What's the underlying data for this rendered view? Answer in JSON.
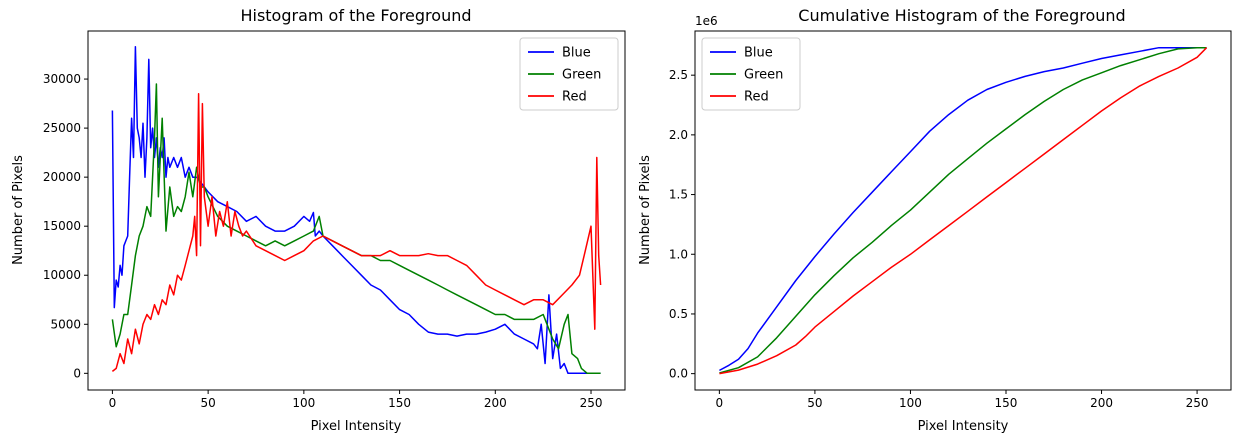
{
  "chart_data": [
    {
      "type": "line",
      "title": "Histogram of the Foreground",
      "xlabel": "Pixel Intensity",
      "ylabel": "Number of Pixels",
      "xlim": [
        -12.75,
        267.75
      ],
      "ylim": [
        -1700,
        34900
      ],
      "xticks": [
        0,
        50,
        100,
        150,
        200,
        250
      ],
      "yticks": [
        0,
        5000,
        10000,
        15000,
        20000,
        25000,
        30000
      ],
      "ytick_labels": [
        "0",
        "5000",
        "10000",
        "15000",
        "20000",
        "25000",
        "30000"
      ],
      "legend": "top-right",
      "series": [
        {
          "name": "Blue",
          "color": "#0000ff",
          "x": [
            0,
            1,
            2,
            3,
            4,
            5,
            6,
            7,
            8,
            9,
            10,
            11,
            12,
            13,
            14,
            15,
            16,
            17,
            18,
            19,
            20,
            21,
            22,
            23,
            24,
            25,
            26,
            27,
            28,
            29,
            30,
            32,
            34,
            36,
            38,
            40,
            42,
            44,
            46,
            48,
            50,
            55,
            60,
            65,
            70,
            75,
            80,
            85,
            90,
            95,
            100,
            103,
            105,
            106,
            108,
            110,
            115,
            120,
            125,
            130,
            135,
            140,
            145,
            150,
            155,
            160,
            165,
            170,
            175,
            180,
            185,
            190,
            195,
            200,
            205,
            210,
            215,
            220,
            222,
            224,
            226,
            228,
            230,
            232,
            234,
            236,
            238,
            240,
            245,
            250,
            255
          ],
          "y": [
            26800,
            6700,
            9500,
            8800,
            11000,
            10000,
            13000,
            13500,
            14000,
            20000,
            26000,
            22000,
            33300,
            25000,
            24000,
            22000,
            25500,
            20000,
            24000,
            32000,
            23000,
            25000,
            22000,
            24000,
            21000,
            23000,
            22000,
            24000,
            20000,
            22000,
            21000,
            22000,
            21000,
            22000,
            20000,
            21000,
            20000,
            20000,
            19500,
            19000,
            18500,
            17500,
            17000,
            16500,
            15500,
            16000,
            15000,
            14500,
            14500,
            15000,
            16000,
            15500,
            16400,
            14000,
            14500,
            14000,
            13000,
            12000,
            11000,
            10000,
            9000,
            8500,
            7500,
            6500,
            6000,
            5000,
            4200,
            4000,
            4000,
            3800,
            4000,
            4000,
            4200,
            4500,
            5000,
            4000,
            3500,
            3000,
            2500,
            5000,
            1000,
            8000,
            1500,
            4000,
            500,
            1000,
            0,
            0,
            0,
            0,
            0
          ]
        },
        {
          "name": "Green",
          "color": "#008000",
          "x": [
            0,
            2,
            4,
            6,
            8,
            10,
            12,
            14,
            16,
            18,
            20,
            22,
            23,
            24,
            25,
            26,
            28,
            30,
            32,
            34,
            36,
            38,
            40,
            42,
            44,
            46,
            48,
            50,
            55,
            60,
            65,
            70,
            75,
            80,
            85,
            90,
            95,
            100,
            105,
            108,
            110,
            115,
            120,
            125,
            130,
            135,
            140,
            145,
            150,
            155,
            160,
            165,
            170,
            175,
            180,
            185,
            190,
            195,
            200,
            205,
            210,
            215,
            220,
            225,
            228,
            230,
            233,
            236,
            238,
            240,
            243,
            245,
            248,
            250,
            255
          ],
          "y": [
            5500,
            2700,
            4000,
            6000,
            6000,
            9000,
            12000,
            14000,
            15000,
            17000,
            16000,
            24000,
            29500,
            18000,
            22000,
            26000,
            14500,
            19000,
            16000,
            17000,
            16500,
            18000,
            20500,
            18000,
            21000,
            19000,
            19000,
            18000,
            16000,
            15000,
            14500,
            14000,
            13500,
            13000,
            13500,
            13000,
            13500,
            14000,
            14500,
            16000,
            14000,
            13500,
            13000,
            12500,
            12000,
            12000,
            11500,
            11500,
            11000,
            10500,
            10000,
            9500,
            9000,
            8500,
            8000,
            7500,
            7000,
            6500,
            6000,
            6000,
            5500,
            5500,
            5500,
            6000,
            4500,
            3500,
            2500,
            5000,
            6000,
            2000,
            1500,
            500,
            0,
            0,
            0
          ]
        },
        {
          "name": "Red",
          "color": "#ff0000",
          "x": [
            0,
            2,
            4,
            6,
            8,
            10,
            12,
            14,
            16,
            18,
            20,
            22,
            24,
            26,
            28,
            30,
            32,
            34,
            36,
            38,
            40,
            42,
            43,
            44,
            45,
            46,
            47,
            48,
            50,
            52,
            54,
            56,
            58,
            60,
            62,
            64,
            66,
            68,
            70,
            75,
            80,
            85,
            90,
            95,
            100,
            105,
            110,
            115,
            120,
            125,
            130,
            135,
            140,
            145,
            150,
            155,
            160,
            165,
            170,
            175,
            180,
            185,
            190,
            195,
            200,
            205,
            210,
            215,
            220,
            225,
            230,
            235,
            240,
            244,
            247,
            250,
            252,
            253,
            254,
            255
          ],
          "y": [
            200,
            500,
            2000,
            1000,
            3500,
            2000,
            4500,
            3000,
            5000,
            6000,
            5500,
            7000,
            6000,
            7500,
            7000,
            9000,
            8000,
            10000,
            9500,
            11000,
            12500,
            14000,
            16000,
            12000,
            28500,
            13000,
            27500,
            18000,
            15000,
            18000,
            14000,
            16500,
            15000,
            17500,
            14000,
            16500,
            15000,
            14000,
            14500,
            13000,
            12500,
            12000,
            11500,
            12000,
            12500,
            13500,
            14000,
            13500,
            13000,
            12500,
            12000,
            12000,
            12000,
            12500,
            12000,
            12000,
            12000,
            12200,
            12000,
            12000,
            11500,
            11000,
            10000,
            9000,
            8500,
            8000,
            7500,
            7000,
            7500,
            7500,
            7000,
            8000,
            9000,
            10000,
            12500,
            15000,
            4500,
            22000,
            12000,
            9000
          ]
        }
      ]
    },
    {
      "type": "line",
      "title": "Cumulative Histogram of the Foreground",
      "xlabel": "Pixel Intensity",
      "ylabel": "Number of Pixels",
      "offset_text": "1e6",
      "xlim": [
        -12.75,
        267.75
      ],
      "ylim": [
        -0.137,
        2.87
      ],
      "xticks": [
        0,
        50,
        100,
        150,
        200,
        250
      ],
      "yticks": [
        0.0,
        0.5,
        1.0,
        1.5,
        2.0,
        2.5
      ],
      "ytick_labels": [
        "0.0",
        "0.5",
        "1.0",
        "1.5",
        "2.0",
        "2.5"
      ],
      "legend": "top-left",
      "series": [
        {
          "name": "Blue",
          "color": "#0000ff",
          "x": [
            0,
            5,
            10,
            15,
            20,
            30,
            40,
            50,
            60,
            70,
            80,
            90,
            100,
            110,
            120,
            130,
            140,
            150,
            160,
            170,
            180,
            190,
            200,
            210,
            220,
            230,
            240,
            250,
            255
          ],
          "y": [
            0.027,
            0.07,
            0.12,
            0.21,
            0.34,
            0.56,
            0.78,
            0.98,
            1.17,
            1.35,
            1.52,
            1.69,
            1.86,
            2.03,
            2.17,
            2.29,
            2.38,
            2.44,
            2.49,
            2.53,
            2.56,
            2.6,
            2.64,
            2.67,
            2.7,
            2.73,
            2.73,
            2.73,
            2.73
          ]
        },
        {
          "name": "Green",
          "color": "#008000",
          "x": [
            0,
            10,
            20,
            25,
            30,
            40,
            50,
            60,
            70,
            80,
            90,
            100,
            110,
            120,
            130,
            140,
            150,
            160,
            170,
            180,
            190,
            200,
            210,
            220,
            230,
            240,
            250,
            255
          ],
          "y": [
            0.005,
            0.05,
            0.14,
            0.22,
            0.3,
            0.48,
            0.66,
            0.82,
            0.97,
            1.1,
            1.24,
            1.37,
            1.52,
            1.67,
            1.8,
            1.93,
            2.05,
            2.17,
            2.28,
            2.38,
            2.46,
            2.52,
            2.58,
            2.63,
            2.68,
            2.72,
            2.73,
            2.73
          ]
        },
        {
          "name": "Red",
          "color": "#ff0000",
          "x": [
            0,
            10,
            20,
            30,
            40,
            45,
            50,
            60,
            70,
            80,
            90,
            100,
            110,
            120,
            130,
            140,
            150,
            160,
            170,
            180,
            190,
            200,
            210,
            220,
            230,
            240,
            250,
            255
          ],
          "y": [
            0.0,
            0.03,
            0.08,
            0.15,
            0.24,
            0.31,
            0.39,
            0.52,
            0.65,
            0.77,
            0.89,
            1.0,
            1.12,
            1.24,
            1.36,
            1.48,
            1.6,
            1.72,
            1.84,
            1.96,
            2.08,
            2.2,
            2.31,
            2.41,
            2.49,
            2.56,
            2.65,
            2.73
          ]
        }
      ]
    }
  ]
}
